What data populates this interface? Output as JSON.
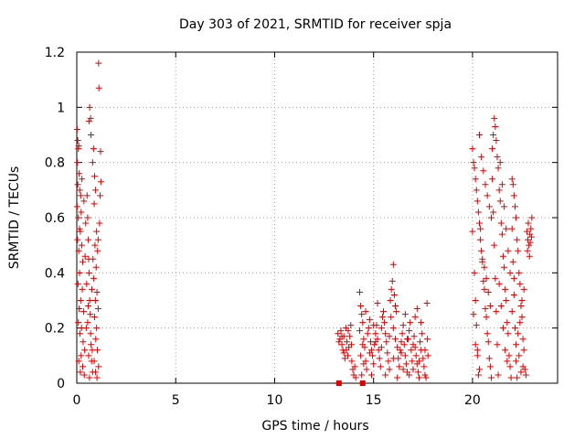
{
  "chart_data": {
    "type": "scatter",
    "title": "Day 303 of 2021, SRMTID for receiver spja",
    "xlabel": "GPS time / hours",
    "ylabel": "SRMTID / TECUs",
    "xlim": [
      0,
      24.3
    ],
    "ylim": [
      0,
      1.2
    ],
    "xticks": [
      0,
      5,
      10,
      15,
      20
    ],
    "xtick_labels": [
      "0",
      "5",
      "10",
      "15",
      "20"
    ],
    "yticks": [
      0,
      0.2,
      0.4,
      0.6,
      0.8,
      1,
      1.2
    ],
    "ytick_labels": [
      "0",
      "0.2",
      "0.4",
      "0.6",
      "0.8",
      "1",
      "1.2"
    ],
    "grid": true,
    "marker": "+",
    "series_color": "#e00000",
    "square_markers": [
      {
        "x": 13.25,
        "y": 0.0
      },
      {
        "x": 14.45,
        "y": 0.0
      }
    ],
    "points": [
      [
        0.02,
        0.92
      ],
      [
        0.05,
        0.88
      ],
      [
        0.08,
        0.85
      ],
      [
        0.1,
        0.86
      ],
      [
        0.03,
        0.8
      ],
      [
        0.12,
        0.76
      ],
      [
        0.05,
        0.72
      ],
      [
        0.15,
        0.7
      ],
      [
        0.2,
        0.68
      ],
      [
        0.08,
        0.6
      ],
      [
        0.22,
        0.62
      ],
      [
        0.18,
        0.55
      ],
      [
        0.04,
        0.52
      ],
      [
        0.1,
        0.48
      ],
      [
        0.25,
        0.5
      ],
      [
        0.3,
        0.44
      ],
      [
        0.14,
        0.4
      ],
      [
        0.06,
        0.36
      ],
      [
        0.28,
        0.34
      ],
      [
        0.2,
        0.3
      ],
      [
        0.12,
        0.27
      ],
      [
        0.35,
        0.26
      ],
      [
        0.08,
        0.22
      ],
      [
        0.24,
        0.2
      ],
      [
        0.16,
        0.18
      ],
      [
        0.32,
        0.15
      ],
      [
        0.4,
        0.12
      ],
      [
        0.22,
        0.1
      ],
      [
        0.1,
        0.08
      ],
      [
        0.3,
        0.06
      ],
      [
        0.18,
        0.04
      ],
      [
        0.38,
        0.03
      ],
      [
        0.45,
        0.58
      ],
      [
        0.42,
        0.46
      ],
      [
        0.02,
        0.64
      ],
      [
        0.26,
        0.74
      ],
      [
        0.36,
        0.66
      ],
      [
        0.14,
        0.56
      ],
      [
        0.52,
        0.68
      ],
      [
        0.55,
        0.6
      ],
      [
        0.58,
        0.52
      ],
      [
        0.6,
        0.45
      ],
      [
        0.62,
        0.4
      ],
      [
        0.5,
        0.36
      ],
      [
        0.65,
        0.3
      ],
      [
        0.68,
        0.25
      ],
      [
        0.55,
        0.22
      ],
      [
        0.7,
        0.18
      ],
      [
        0.72,
        0.14
      ],
      [
        0.6,
        0.1
      ],
      [
        0.75,
        0.08
      ],
      [
        0.8,
        0.04
      ],
      [
        0.64,
        0.02
      ],
      [
        0.78,
        0.12
      ],
      [
        0.48,
        0.2
      ],
      [
        0.58,
        0.28
      ],
      [
        0.62,
        0.95
      ],
      [
        0.65,
        1.0
      ],
      [
        0.7,
        0.96
      ],
      [
        0.72,
        0.9
      ],
      [
        0.85,
        0.85
      ],
      [
        0.8,
        0.8
      ],
      [
        0.9,
        0.75
      ],
      [
        0.95,
        0.7
      ],
      [
        0.88,
        0.65
      ],
      [
        1.0,
        0.55
      ],
      [
        0.92,
        0.5
      ],
      [
        1.05,
        0.48
      ],
      [
        0.98,
        0.42
      ],
      [
        0.86,
        0.38
      ],
      [
        1.02,
        0.33
      ],
      [
        0.94,
        0.3
      ],
      [
        1.08,
        0.27
      ],
      [
        0.9,
        0.24
      ],
      [
        1.0,
        0.2
      ],
      [
        0.96,
        0.16
      ],
      [
        1.04,
        0.12
      ],
      [
        0.88,
        0.08
      ],
      [
        1.1,
        0.06
      ],
      [
        0.95,
        0.04
      ],
      [
        1.02,
        0.02
      ],
      [
        1.1,
        1.16
      ],
      [
        1.12,
        1.07
      ],
      [
        1.2,
        0.84
      ],
      [
        1.22,
        0.73
      ],
      [
        1.18,
        0.68
      ],
      [
        1.15,
        0.58
      ],
      [
        1.08,
        0.52
      ],
      [
        0.82,
        0.45
      ],
      [
        0.76,
        0.34
      ],
      [
        13.2,
        0.18
      ],
      [
        13.3,
        0.16
      ],
      [
        13.4,
        0.14
      ],
      [
        13.45,
        0.12
      ],
      [
        13.5,
        0.17
      ],
      [
        13.6,
        0.2
      ],
      [
        13.65,
        0.15
      ],
      [
        13.7,
        0.1
      ],
      [
        13.75,
        0.13
      ],
      [
        13.8,
        0.17
      ],
      [
        13.85,
        0.21
      ],
      [
        13.9,
        0.08
      ],
      [
        13.95,
        0.05
      ],
      [
        14.0,
        0.03
      ],
      [
        14.05,
        0.06
      ],
      [
        13.35,
        0.19
      ],
      [
        13.55,
        0.09
      ],
      [
        13.25,
        0.15
      ],
      [
        13.62,
        0.12
      ],
      [
        13.88,
        0.14
      ],
      [
        14.1,
        0.02
      ],
      [
        13.72,
        0.19
      ],
      [
        13.5,
        0.11
      ],
      [
        13.4,
        0.17
      ],
      [
        14.3,
        0.33
      ],
      [
        14.35,
        0.28
      ],
      [
        14.4,
        0.25
      ],
      [
        14.45,
        0.22
      ],
      [
        14.3,
        0.19
      ],
      [
        14.5,
        0.16
      ],
      [
        14.55,
        0.13
      ],
      [
        14.35,
        0.1
      ],
      [
        14.6,
        0.08
      ],
      [
        14.65,
        0.05
      ],
      [
        14.4,
        0.03
      ],
      [
        14.7,
        0.18
      ],
      [
        14.75,
        0.2
      ],
      [
        14.8,
        0.23
      ],
      [
        14.85,
        0.15
      ],
      [
        14.9,
        0.12
      ],
      [
        14.95,
        0.1
      ],
      [
        15.0,
        0.07
      ],
      [
        15.05,
        0.14
      ],
      [
        15.1,
        0.18
      ],
      [
        15.15,
        0.21
      ],
      [
        15.2,
        0.16
      ],
      [
        15.25,
        0.12
      ],
      [
        15.3,
        0.09
      ],
      [
        15.35,
        0.06
      ],
      [
        15.4,
        0.2
      ],
      [
        15.45,
        0.24
      ],
      [
        15.5,
        0.26
      ],
      [
        15.55,
        0.22
      ],
      [
        15.6,
        0.18
      ],
      [
        15.65,
        0.15
      ],
      [
        15.7,
        0.11
      ],
      [
        15.75,
        0.08
      ],
      [
        15.8,
        0.05
      ],
      [
        15.85,
        0.3
      ],
      [
        15.9,
        0.34
      ],
      [
        15.95,
        0.37
      ],
      [
        16.0,
        0.43
      ],
      [
        16.05,
        0.32
      ],
      [
        16.1,
        0.28
      ],
      [
        16.15,
        0.26
      ],
      [
        15.88,
        0.24
      ],
      [
        16.0,
        0.2
      ],
      [
        16.1,
        0.16
      ],
      [
        16.2,
        0.13
      ],
      [
        16.25,
        0.09
      ],
      [
        16.3,
        0.06
      ],
      [
        16.35,
        0.12
      ],
      [
        16.4,
        0.15
      ],
      [
        16.45,
        0.18
      ],
      [
        16.5,
        0.21
      ],
      [
        16.55,
        0.14
      ],
      [
        16.6,
        0.1
      ],
      [
        16.65,
        0.07
      ],
      [
        16.7,
        0.04
      ],
      [
        16.75,
        0.16
      ],
      [
        16.8,
        0.19
      ],
      [
        16.85,
        0.22
      ],
      [
        16.9,
        0.12
      ],
      [
        16.95,
        0.08
      ],
      [
        17.0,
        0.05
      ],
      [
        17.05,
        0.17
      ],
      [
        17.1,
        0.13
      ],
      [
        17.15,
        0.1
      ],
      [
        17.2,
        0.07
      ],
      [
        17.25,
        0.04
      ],
      [
        17.3,
        0.02
      ],
      [
        17.35,
        0.15
      ],
      [
        17.4,
        0.12
      ],
      [
        17.45,
        0.18
      ],
      [
        17.5,
        0.09
      ],
      [
        17.55,
        0.06
      ],
      [
        17.6,
        0.03
      ],
      [
        17.65,
        0.02
      ],
      [
        17.7,
        0.29
      ],
      [
        17.72,
        0.16
      ],
      [
        17.75,
        0.1
      ],
      [
        17.4,
        0.22
      ],
      [
        17.1,
        0.24
      ],
      [
        16.6,
        0.25
      ],
      [
        15.2,
        0.29
      ],
      [
        14.6,
        0.26
      ],
      [
        14.9,
        0.03
      ],
      [
        15.6,
        0.03
      ],
      [
        16.2,
        0.02
      ],
      [
        16.8,
        0.03
      ],
      [
        17.2,
        0.27
      ],
      [
        15.0,
        0.21
      ],
      [
        14.45,
        0.14
      ],
      [
        16.4,
        0.11
      ],
      [
        15.4,
        0.13
      ],
      [
        17.6,
        0.12
      ],
      [
        17.0,
        0.14
      ],
      [
        16.7,
        0.16
      ],
      [
        15.8,
        0.17
      ],
      [
        15.1,
        0.15
      ],
      [
        14.8,
        0.11
      ],
      [
        14.5,
        0.07
      ],
      [
        16.0,
        0.09
      ],
      [
        16.5,
        0.05
      ],
      [
        17.3,
        0.08
      ],
      [
        20.0,
        0.85
      ],
      [
        20.05,
        0.8
      ],
      [
        20.1,
        0.78
      ],
      [
        20.15,
        0.74
      ],
      [
        20.2,
        0.7
      ],
      [
        20.25,
        0.66
      ],
      [
        20.3,
        0.62
      ],
      [
        20.35,
        0.58
      ],
      [
        20.0,
        0.55
      ],
      [
        20.4,
        0.52
      ],
      [
        20.45,
        0.48
      ],
      [
        20.5,
        0.44
      ],
      [
        20.1,
        0.4
      ],
      [
        20.55,
        0.37
      ],
      [
        20.6,
        0.34
      ],
      [
        20.15,
        0.3
      ],
      [
        20.65,
        0.27
      ],
      [
        20.7,
        0.24
      ],
      [
        20.2,
        0.21
      ],
      [
        20.75,
        0.18
      ],
      [
        20.8,
        0.15
      ],
      [
        20.25,
        0.12
      ],
      [
        20.85,
        0.09
      ],
      [
        20.9,
        0.06
      ],
      [
        20.3,
        0.03
      ],
      [
        20.95,
        0.02
      ],
      [
        20.35,
        0.9
      ],
      [
        20.45,
        0.82
      ],
      [
        20.55,
        0.77
      ],
      [
        20.65,
        0.72
      ],
      [
        20.75,
        0.68
      ],
      [
        20.85,
        0.64
      ],
      [
        20.95,
        0.6
      ],
      [
        20.4,
        0.56
      ],
      [
        20.5,
        0.45
      ],
      [
        20.6,
        0.42
      ],
      [
        20.7,
        0.38
      ],
      [
        20.8,
        0.33
      ],
      [
        20.9,
        0.28
      ],
      [
        20.05,
        0.25
      ],
      [
        20.15,
        0.14
      ],
      [
        20.25,
        0.1
      ],
      [
        20.35,
        0.05
      ],
      [
        21.0,
        0.85
      ],
      [
        21.05,
        0.9
      ],
      [
        21.1,
        0.96
      ],
      [
        21.15,
        0.93
      ],
      [
        21.2,
        0.88
      ],
      [
        21.25,
        0.82
      ],
      [
        21.3,
        0.78
      ],
      [
        21.0,
        0.74
      ],
      [
        21.35,
        0.7
      ],
      [
        21.4,
        0.66
      ],
      [
        21.05,
        0.62
      ],
      [
        21.45,
        0.58
      ],
      [
        21.5,
        0.54
      ],
      [
        21.1,
        0.5
      ],
      [
        21.55,
        0.46
      ],
      [
        21.6,
        0.42
      ],
      [
        21.15,
        0.38
      ],
      [
        21.65,
        0.34
      ],
      [
        21.7,
        0.3
      ],
      [
        21.2,
        0.26
      ],
      [
        21.75,
        0.22
      ],
      [
        21.8,
        0.18
      ],
      [
        21.25,
        0.14
      ],
      [
        21.85,
        0.1
      ],
      [
        21.9,
        0.06
      ],
      [
        21.3,
        0.03
      ],
      [
        21.95,
        0.02
      ],
      [
        21.4,
        0.8
      ],
      [
        21.5,
        0.72
      ],
      [
        21.6,
        0.64
      ],
      [
        21.7,
        0.56
      ],
      [
        21.8,
        0.48
      ],
      [
        21.9,
        0.4
      ],
      [
        21.35,
        0.36
      ],
      [
        21.45,
        0.28
      ],
      [
        21.55,
        0.2
      ],
      [
        21.65,
        0.12
      ],
      [
        21.75,
        0.08
      ],
      [
        22.0,
        0.74
      ],
      [
        22.05,
        0.72
      ],
      [
        22.1,
        0.68
      ],
      [
        22.15,
        0.64
      ],
      [
        22.2,
        0.6
      ],
      [
        22.0,
        0.56
      ],
      [
        22.25,
        0.52
      ],
      [
        22.3,
        0.48
      ],
      [
        22.05,
        0.44
      ],
      [
        22.35,
        0.4
      ],
      [
        22.4,
        0.36
      ],
      [
        22.1,
        0.32
      ],
      [
        22.45,
        0.28
      ],
      [
        22.5,
        0.24
      ],
      [
        22.15,
        0.2
      ],
      [
        22.55,
        0.16
      ],
      [
        22.6,
        0.12
      ],
      [
        22.2,
        0.08
      ],
      [
        22.65,
        0.05
      ],
      [
        22.7,
        0.03
      ],
      [
        22.25,
        0.02
      ],
      [
        22.75,
        0.55
      ],
      [
        22.8,
        0.52
      ],
      [
        22.85,
        0.5
      ],
      [
        22.9,
        0.54
      ],
      [
        22.95,
        0.56
      ],
      [
        23.0,
        0.6
      ],
      [
        22.78,
        0.48
      ],
      [
        22.88,
        0.46
      ],
      [
        22.92,
        0.51
      ],
      [
        22.98,
        0.53
      ],
      [
        22.82,
        0.58
      ],
      [
        22.6,
        0.34
      ],
      [
        22.5,
        0.3
      ],
      [
        22.4,
        0.22
      ],
      [
        22.3,
        0.18
      ],
      [
        22.2,
        0.14
      ],
      [
        22.35,
        0.1
      ],
      [
        22.55,
        0.06
      ],
      [
        22.45,
        0.04
      ],
      [
        22.1,
        0.38
      ],
      [
        22.0,
        0.26
      ]
    ]
  }
}
